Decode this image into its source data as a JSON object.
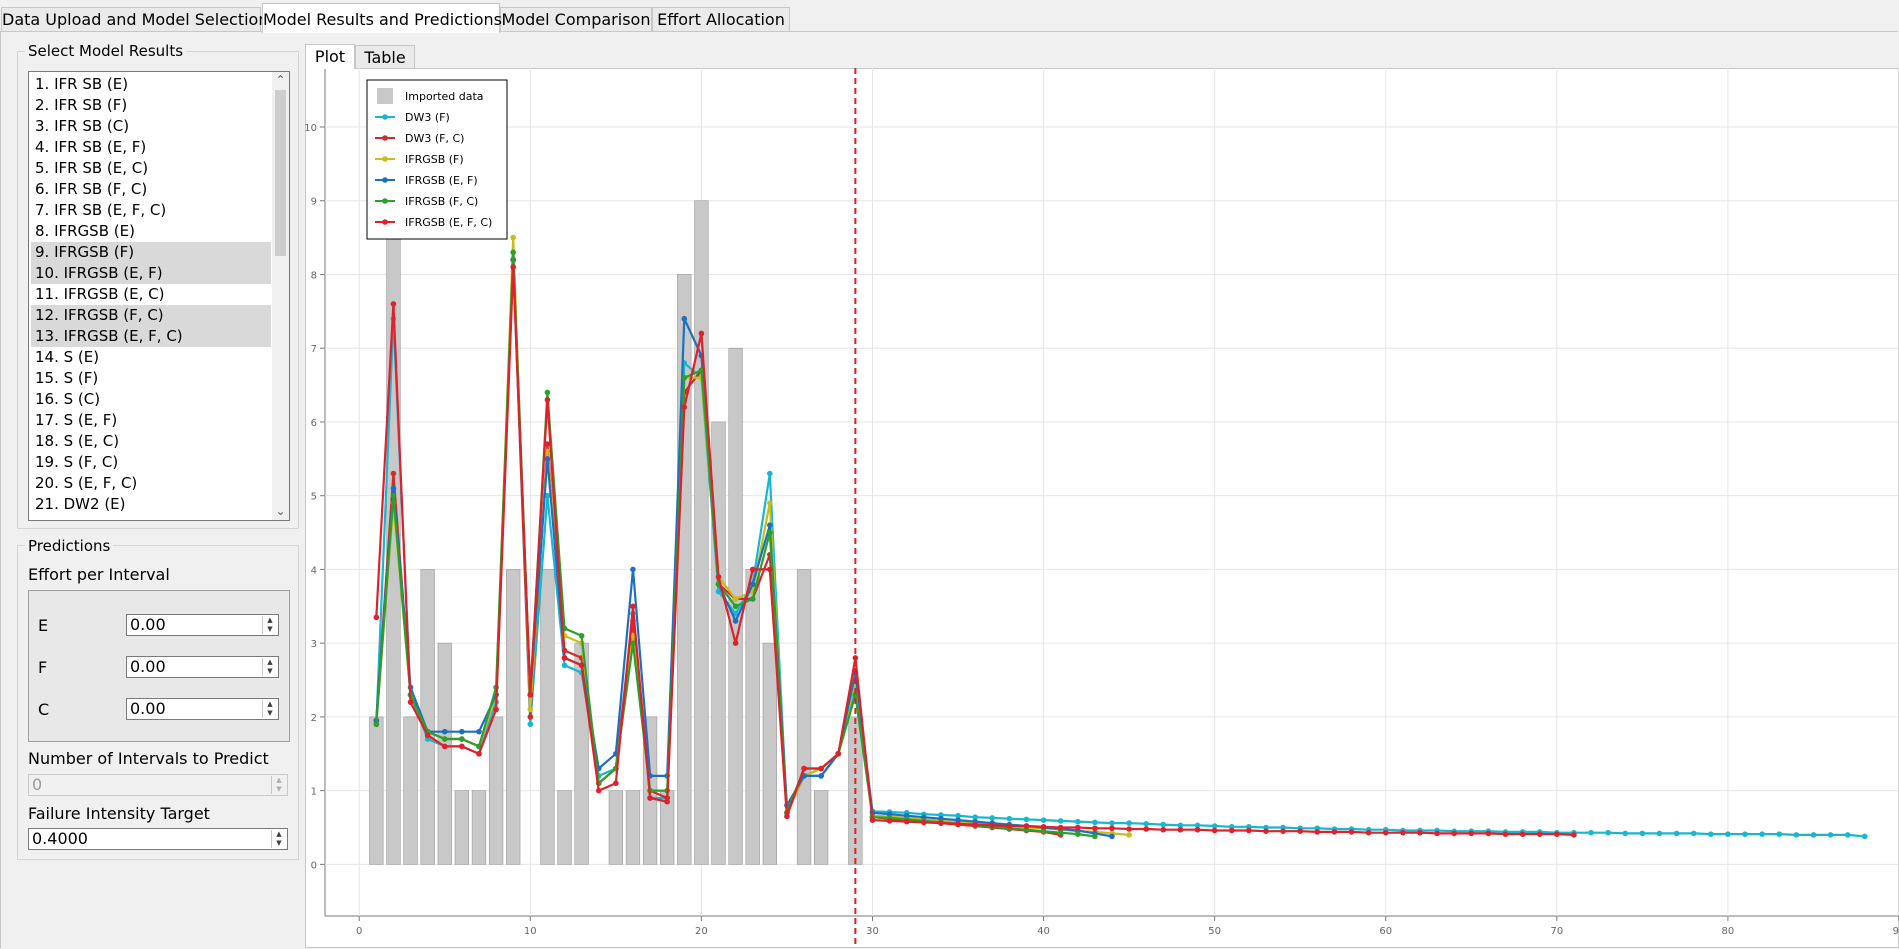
{
  "top_tabs": [
    {
      "label": "Data Upload and Model Selection",
      "active": false
    },
    {
      "label": "Model Results and Predictions",
      "active": true
    },
    {
      "label": "Model Comparison",
      "active": false
    },
    {
      "label": "Effort Allocation",
      "active": false
    }
  ],
  "select_model": {
    "title": "Select Model Results",
    "items": [
      {
        "label": "1. IFR SB (E)",
        "selected": false
      },
      {
        "label": "2. IFR SB (F)",
        "selected": false
      },
      {
        "label": "3. IFR SB (C)",
        "selected": false
      },
      {
        "label": "4. IFR SB (E, F)",
        "selected": false
      },
      {
        "label": "5. IFR SB (E, C)",
        "selected": false
      },
      {
        "label": "6. IFR SB (F, C)",
        "selected": false
      },
      {
        "label": "7. IFR SB (E, F, C)",
        "selected": false
      },
      {
        "label": "8. IFRGSB (E)",
        "selected": false
      },
      {
        "label": "9. IFRGSB (F)",
        "selected": true
      },
      {
        "label": "10. IFRGSB (E, F)",
        "selected": true
      },
      {
        "label": "11. IFRGSB (E, C)",
        "selected": false
      },
      {
        "label": "12. IFRGSB (F, C)",
        "selected": true
      },
      {
        "label": "13. IFRGSB (E, F, C)",
        "selected": true
      },
      {
        "label": "14. S (E)",
        "selected": false
      },
      {
        "label": "15. S (F)",
        "selected": false
      },
      {
        "label": "16. S (C)",
        "selected": false
      },
      {
        "label": "17. S (E, F)",
        "selected": false
      },
      {
        "label": "18. S (E, C)",
        "selected": false
      },
      {
        "label": "19. S (F, C)",
        "selected": false
      },
      {
        "label": "20. S (E, F, C)",
        "selected": false
      },
      {
        "label": "21. DW2 (E)",
        "selected": false
      }
    ]
  },
  "predictions": {
    "title": "Predictions",
    "effort_label": "Effort per Interval",
    "fields": [
      {
        "label": "E",
        "value": "0.00"
      },
      {
        "label": "F",
        "value": "0.00"
      },
      {
        "label": "C",
        "value": "0.00"
      }
    ],
    "intervals_label": "Number of Intervals to Predict",
    "intervals_value": "0",
    "target_label": "Failure Intensity Target",
    "target_value": "0.4000"
  },
  "plot_tabs": [
    {
      "label": "Plot",
      "active": true
    },
    {
      "label": "Table",
      "active": false
    }
  ],
  "chart_data": {
    "type": "bar",
    "xlim": [
      -2,
      90
    ],
    "ylim": [
      -0.7,
      10.8
    ],
    "x_ticks": [
      0,
      10,
      20,
      30,
      40,
      50,
      60,
      70,
      80,
      90
    ],
    "y_ticks": [
      0,
      1,
      2,
      3,
      4,
      5,
      6,
      7,
      8,
      9,
      10
    ],
    "grid": true,
    "legend_position": "top-left",
    "vline_x": 29,
    "vline_color": "#dd2020",
    "bars": {
      "name": "Imported data",
      "color": "#c8c8c8",
      "x": [
        1,
        2,
        3,
        4,
        5,
        6,
        7,
        8,
        9,
        10,
        11,
        12,
        13,
        14,
        15,
        16,
        17,
        18,
        19,
        20,
        21,
        22,
        23,
        24,
        25,
        26,
        27,
        28,
        29
      ],
      "values": [
        2,
        10,
        2,
        4,
        3,
        1,
        1,
        2,
        4,
        0,
        4,
        1,
        3,
        0,
        1,
        1,
        2,
        1,
        8,
        9,
        6,
        7,
        4,
        3,
        0,
        4,
        1,
        0,
        2
      ]
    },
    "series": [
      {
        "name": "DW3 (F)",
        "color": "#18b7cf",
        "x": [
          1,
          2,
          3,
          4,
          5,
          6,
          7,
          8,
          9,
          10,
          11,
          12,
          13,
          14,
          15,
          16,
          17,
          18,
          19,
          20,
          21,
          22,
          23,
          24,
          25,
          26,
          27,
          28,
          29,
          30,
          31,
          32,
          33,
          34,
          35,
          36,
          37,
          38,
          39,
          40,
          41,
          42,
          43,
          44,
          45,
          46,
          47,
          48,
          49,
          50,
          51,
          52,
          53,
          54,
          55,
          56,
          57,
          58,
          59,
          60,
          61,
          62,
          63,
          64,
          65,
          66,
          67,
          68,
          69,
          70,
          71,
          72,
          73,
          74,
          75,
          76,
          77,
          78,
          79,
          80,
          81,
          82,
          83,
          84,
          85,
          86,
          87,
          88
        ],
        "values": [
          1.9,
          7.4,
          2.3,
          1.7,
          1.6,
          1.6,
          1.5,
          2.2,
          8.2,
          1.9,
          5.0,
          2.7,
          2.6,
          1.2,
          1.3,
          3.4,
          0.9,
          0.9,
          6.8,
          6.6,
          3.7,
          3.4,
          3.8,
          5.3,
          0.7,
          1.2,
          1.2,
          1.5,
          2.4,
          0.72,
          0.71,
          0.7,
          0.68,
          0.67,
          0.66,
          0.64,
          0.63,
          0.62,
          0.61,
          0.6,
          0.59,
          0.58,
          0.57,
          0.56,
          0.56,
          0.55,
          0.54,
          0.53,
          0.53,
          0.52,
          0.51,
          0.51,
          0.5,
          0.5,
          0.49,
          0.49,
          0.48,
          0.48,
          0.47,
          0.47,
          0.46,
          0.46,
          0.46,
          0.45,
          0.45,
          0.45,
          0.44,
          0.44,
          0.44,
          0.43,
          0.43,
          0.43,
          0.43,
          0.42,
          0.42,
          0.42,
          0.42,
          0.42,
          0.41,
          0.41,
          0.41,
          0.41,
          0.41,
          0.4,
          0.4,
          0.4,
          0.4,
          0.38
        ]
      },
      {
        "name": "DW3 (F, C)",
        "color": "#d52a2a",
        "x": [
          1,
          2,
          3,
          4,
          5,
          6,
          7,
          8,
          9,
          10,
          11,
          12,
          13,
          14,
          15,
          16,
          17,
          18,
          19,
          20,
          21,
          22,
          23,
          24,
          25,
          26,
          27,
          28,
          29,
          30,
          31,
          32,
          33,
          34,
          35,
          36,
          37,
          38,
          39,
          40,
          41
        ],
        "values": [
          1.95,
          5.3,
          2.3,
          1.8,
          1.7,
          1.7,
          1.6,
          2.3,
          8.2,
          2.0,
          5.7,
          2.9,
          2.8,
          1.1,
          1.3,
          3.3,
          1.0,
          0.9,
          6.4,
          6.7,
          3.8,
          3.6,
          3.6,
          4.2,
          0.7,
          1.2,
          1.3,
          1.5,
          2.6,
          0.64,
          0.62,
          0.6,
          0.58,
          0.56,
          0.54,
          0.52,
          0.5,
          0.48,
          0.46,
          0.44,
          0.4
        ]
      },
      {
        "name": "IFRGSB (F)",
        "color": "#c6be1d",
        "x": [
          1,
          2,
          3,
          4,
          5,
          6,
          7,
          8,
          9,
          10,
          11,
          12,
          13,
          14,
          15,
          16,
          17,
          18,
          19,
          20,
          21,
          22,
          23,
          24,
          25,
          26,
          27,
          28,
          29,
          30,
          31,
          32,
          33,
          34,
          35,
          36,
          37,
          38,
          39,
          40,
          41,
          42,
          43,
          44,
          45
        ],
        "values": [
          1.9,
          4.9,
          2.3,
          1.8,
          1.7,
          1.7,
          1.6,
          2.3,
          8.5,
          2.1,
          5.6,
          3.1,
          3.0,
          1.1,
          1.3,
          3.1,
          1.0,
          1.0,
          6.6,
          6.6,
          3.9,
          3.6,
          3.7,
          4.9,
          0.7,
          1.2,
          1.3,
          1.5,
          2.5,
          0.66,
          0.65,
          0.63,
          0.61,
          0.59,
          0.57,
          0.56,
          0.54,
          0.52,
          0.5,
          0.49,
          0.47,
          0.45,
          0.44,
          0.42,
          0.4
        ]
      },
      {
        "name": "IFRGSB (E, F)",
        "color": "#1f6fc1",
        "x": [
          1,
          2,
          3,
          4,
          5,
          6,
          7,
          8,
          9,
          10,
          11,
          12,
          13,
          14,
          15,
          16,
          17,
          18,
          19,
          20,
          21,
          22,
          23,
          24,
          25,
          26,
          27,
          28,
          29,
          30,
          31,
          32,
          33,
          34,
          35,
          36,
          37,
          38,
          39,
          40,
          41,
          42,
          43,
          44
        ],
        "values": [
          1.95,
          5.1,
          2.4,
          1.8,
          1.8,
          1.8,
          1.8,
          2.3,
          8.2,
          2.3,
          5.5,
          2.8,
          2.7,
          1.3,
          1.5,
          4.0,
          1.2,
          1.2,
          7.4,
          6.9,
          3.8,
          3.3,
          3.8,
          4.6,
          0.8,
          1.2,
          1.2,
          1.5,
          2.6,
          0.7,
          0.68,
          0.66,
          0.64,
          0.62,
          0.6,
          0.58,
          0.56,
          0.54,
          0.52,
          0.5,
          0.48,
          0.46,
          0.42,
          0.38
        ]
      },
      {
        "name": "IFRGSB (F, C)",
        "color": "#2ca02c",
        "x": [
          1,
          2,
          3,
          4,
          5,
          6,
          7,
          8,
          9,
          10,
          11,
          12,
          13,
          14,
          15,
          16,
          17,
          18,
          19,
          20,
          21,
          22,
          23,
          24,
          25,
          26,
          27,
          28,
          29,
          30,
          31,
          32,
          33,
          34,
          35,
          36,
          37,
          38,
          39,
          40,
          41,
          42,
          43
        ],
        "values": [
          1.9,
          5.0,
          2.3,
          1.8,
          1.7,
          1.7,
          1.6,
          2.4,
          8.3,
          2.3,
          6.4,
          3.2,
          3.1,
          1.1,
          1.3,
          3.0,
          1.0,
          1.0,
          6.6,
          6.7,
          3.8,
          3.5,
          3.6,
          4.5,
          0.7,
          1.3,
          1.3,
          1.5,
          2.3,
          0.64,
          0.63,
          0.61,
          0.59,
          0.57,
          0.55,
          0.53,
          0.51,
          0.49,
          0.47,
          0.45,
          0.43,
          0.41,
          0.38
        ]
      },
      {
        "name": "IFRGSB (E, F, C)",
        "color": "#e0202a",
        "x": [
          1,
          2,
          3,
          4,
          5,
          6,
          7,
          8,
          9,
          10,
          11,
          12,
          13,
          14,
          15,
          16,
          17,
          18,
          19,
          20,
          21,
          22,
          23,
          24,
          25,
          26,
          27,
          28,
          29,
          30,
          31,
          32,
          33,
          34,
          35,
          36,
          37,
          38,
          39,
          40,
          41,
          42,
          43,
          44,
          45,
          46,
          47,
          48,
          49,
          50,
          51,
          52,
          53,
          54,
          55,
          56,
          57,
          58,
          59,
          60,
          61,
          62,
          63,
          64,
          65,
          66,
          67,
          68,
          69,
          70,
          71
        ],
        "values": [
          3.35,
          7.6,
          2.2,
          1.75,
          1.6,
          1.6,
          1.5,
          2.1,
          8.1,
          2.3,
          6.3,
          2.8,
          2.7,
          1.0,
          1.1,
          3.5,
          0.9,
          0.85,
          6.2,
          7.2,
          3.9,
          3.0,
          4.0,
          4.0,
          0.65,
          1.3,
          1.3,
          1.5,
          2.8,
          0.6,
          0.59,
          0.58,
          0.57,
          0.56,
          0.55,
          0.54,
          0.53,
          0.52,
          0.52,
          0.51,
          0.5,
          0.5,
          0.49,
          0.49,
          0.48,
          0.48,
          0.47,
          0.47,
          0.47,
          0.46,
          0.46,
          0.46,
          0.45,
          0.45,
          0.45,
          0.44,
          0.44,
          0.44,
          0.43,
          0.43,
          0.43,
          0.43,
          0.42,
          0.42,
          0.42,
          0.42,
          0.41,
          0.41,
          0.41,
          0.41,
          0.4
        ]
      }
    ]
  }
}
